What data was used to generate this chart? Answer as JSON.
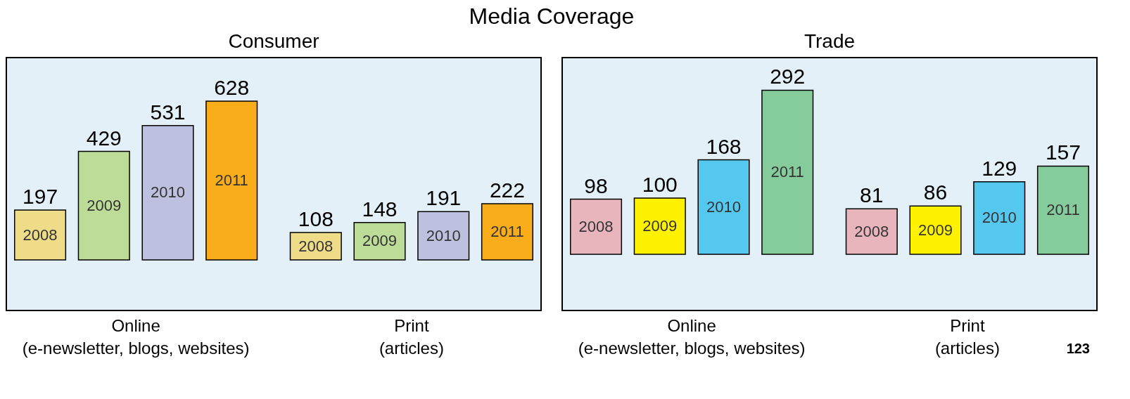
{
  "chart_data": [
    {
      "type": "bar",
      "title": "Media Coverage",
      "subtitle": "Consumer",
      "categories": [
        "Online\n(e-newsletter, blogs, websites)",
        "Print\n(articles)"
      ],
      "data_labels": true,
      "series": [
        {
          "name": "2008",
          "color": "#eedc88",
          "values": [
            197,
            108
          ]
        },
        {
          "name": "2009",
          "color": "#bddc98",
          "values": [
            429,
            148
          ]
        },
        {
          "name": "2010",
          "color": "#bdc0df",
          "values": [
            531,
            191
          ]
        },
        {
          "name": "2011",
          "color": "#f9ad1a",
          "values": [
            628,
            222
          ]
        }
      ]
    },
    {
      "type": "bar",
      "subtitle": "Trade",
      "categories": [
        "Online\n(e-newsletter, blogs, websites)",
        "Print\n(articles)"
      ],
      "data_labels": true,
      "annotations": [
        "123"
      ],
      "series": [
        {
          "name": "2008",
          "color": "#e8b5bd",
          "values": [
            98,
            81
          ]
        },
        {
          "name": "2009",
          "color": "#fff200",
          "values": [
            100,
            86
          ]
        },
        {
          "name": "2010",
          "color": "#55c8f0",
          "values": [
            168,
            129
          ]
        },
        {
          "name": "2011",
          "color": "#86cb9c",
          "values": [
            292,
            157
          ]
        }
      ]
    }
  ]
}
